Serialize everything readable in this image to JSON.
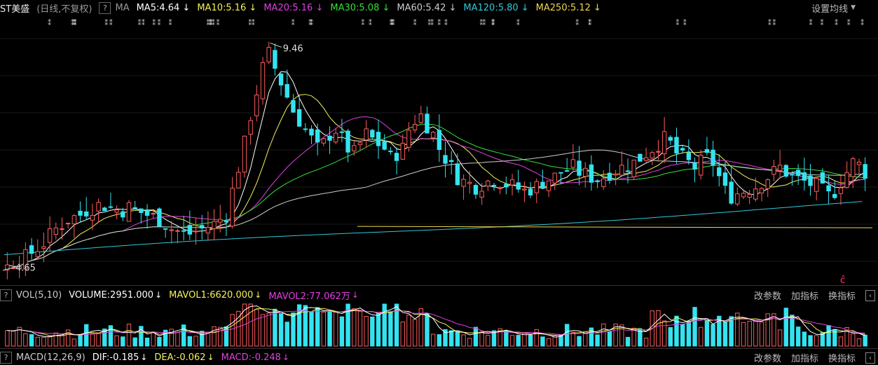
{
  "header": {
    "stock_name": "ST美盛",
    "mode": "(日线,不复权)",
    "help": "?",
    "ma_label": "MA",
    "ma_items": [
      {
        "label": "MA5:4.64",
        "color": "#ffffff"
      },
      {
        "label": "MA10:5.16",
        "color": "#f5f059"
      },
      {
        "label": "MA20:5.16",
        "color": "#e040e0"
      },
      {
        "label": "MA30:5.08",
        "color": "#35e035"
      },
      {
        "label": "MA60:5.42",
        "color": "#cccccc"
      },
      {
        "label": "MA120:5.80",
        "color": "#31c9d8"
      },
      {
        "label": "MA250:5.12",
        "color": "#f0d64e"
      }
    ],
    "arrow": "↓",
    "settings": "设置均线"
  },
  "main_chart": {
    "high_label": "9.46",
    "low_label": "4.65",
    "marker_symbol": "ĉ"
  },
  "volume_bar": {
    "help": "?",
    "name": "VOL(5,10)",
    "volume": "VOLUME:2951.000",
    "mavol1": "MAVOL1:6620.000",
    "mavol2": "MAVOL2:77.062万",
    "links": [
      "改参数",
      "加指标",
      "换指标"
    ]
  },
  "macd_bar": {
    "help": "?",
    "name": "MACD(12,26,9)",
    "dif": "DIF:-0.185",
    "dea": "DEA:-0.062",
    "macd": "MACD:-0.248",
    "links": [
      "改参数",
      "加指标",
      "换指标"
    ]
  },
  "colors": {
    "up": "#ff5c5c",
    "down": "#33e3f0",
    "ma5": "#ffffff",
    "ma10": "#f5f059",
    "ma20": "#e040e0",
    "ma30": "#35e035",
    "ma60": "#cccccc",
    "ma120": "#31c9d8",
    "ma250": "#f0d64e"
  },
  "chart_data": {
    "type": "candlestick",
    "title": "ST美盛",
    "price_high": 9.46,
    "price_low": 4.65,
    "close_path": [
      4.7,
      4.8,
      4.85,
      4.9,
      5.0,
      5.1,
      5.2,
      5.35,
      5.5,
      5.6,
      5.7,
      5.75,
      5.8,
      5.9,
      5.95,
      6.0,
      6.0,
      5.95,
      5.9,
      5.9,
      5.95,
      5.9,
      5.85,
      5.8,
      5.75,
      5.7,
      5.6,
      5.5,
      5.45,
      5.4,
      5.4,
      5.45,
      5.5,
      5.55,
      5.6,
      5.7,
      5.8,
      6.3,
      6.8,
      7.3,
      7.9,
      8.4,
      8.9,
      9.2,
      8.9,
      8.6,
      8.3,
      8.0,
      7.8,
      7.6,
      7.4,
      7.2,
      7.3,
      7.5,
      7.6,
      7.4,
      7.2,
      7.1,
      7.3,
      7.5,
      7.4,
      7.3,
      7.2,
      7.0,
      7.1,
      7.2,
      7.6,
      7.8,
      7.9,
      7.7,
      7.5,
      7.2,
      7.0,
      6.8,
      6.6,
      6.5,
      6.45,
      6.4,
      6.45,
      6.5,
      6.55,
      6.5,
      6.45,
      6.4,
      6.35,
      6.3,
      6.35,
      6.4,
      6.5,
      6.55,
      6.6,
      6.7,
      6.75,
      6.8,
      6.7,
      6.65,
      6.6,
      6.55,
      6.6,
      6.7,
      6.75,
      6.8,
      6.85,
      6.9,
      7.0,
      7.1,
      7.2,
      7.3,
      7.4,
      7.3,
      7.1,
      7.0,
      6.9,
      6.8,
      6.9,
      7.0,
      6.9,
      6.6,
      6.3,
      6.2,
      6.25,
      6.3,
      6.35,
      6.4,
      6.5,
      6.6,
      6.7,
      6.8,
      6.7,
      6.6,
      6.55,
      6.5,
      6.45,
      6.4,
      6.3,
      6.2,
      6.3,
      6.5,
      6.7,
      6.9,
      6.85,
      6.7
    ]
  }
}
